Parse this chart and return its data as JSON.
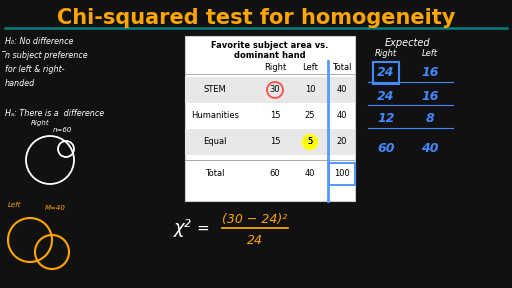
{
  "title": "Chi-squared test for homogeneity",
  "title_color": "#FFA500",
  "background_color": "#111111",
  "underline_color": "#008080",
  "table_bg": "#ffffff",
  "table_alt_bg": "#e8e8e8",
  "table_rows": [
    [
      "STEM",
      "30",
      "10",
      "40"
    ],
    [
      "Humanities",
      "15",
      "25",
      "40"
    ],
    [
      "Equal",
      "15",
      "5",
      "20"
    ],
    [
      "Total",
      "60",
      "40",
      "100"
    ]
  ],
  "expected_rows": [
    [
      "24",
      "16"
    ],
    [
      "24",
      "16"
    ],
    [
      "12",
      "8"
    ],
    [
      "60",
      "40"
    ]
  ],
  "stem_circle_color": "#FF5555",
  "total_col_color": "#5599FF",
  "yellow_dot_color": "#FFFF00",
  "formula_color": "#FFA500",
  "white_text_color": "#FFFFFF",
  "blue_text_color": "#4488FF",
  "orange_color": "#FFA500",
  "handwriting_color": "#FFFFFF"
}
